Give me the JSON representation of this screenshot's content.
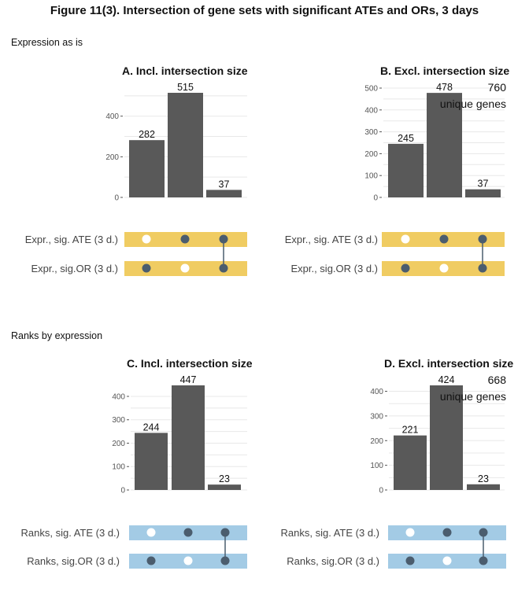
{
  "figure_title": "Figure 11(3). Intersection of gene sets with significant ATEs and ORs, 3 days",
  "sections": [
    {
      "label": "Expression as is"
    },
    {
      "label": "Ranks by expression"
    }
  ],
  "colors": {
    "bar": "#595959",
    "expr_band": "#f0cc62",
    "ranks_band": "#a3cbe5",
    "dot_filled": "#4b5d6e",
    "dot_empty": "#ffffff",
    "grid": "#e8e8e8"
  },
  "chart_data": [
    {
      "panel": "A",
      "type": "bar",
      "title": "A. Incl. intersection size",
      "categories": [
        "1",
        "2",
        "3"
      ],
      "values": [
        282,
        515,
        37
      ],
      "ylim": [
        0,
        515
      ],
      "yticks": [
        0,
        200,
        400
      ],
      "sets": [
        "Expr., sig. ATE (3 d.)",
        "Expr., sig.OR (3 d.)"
      ],
      "membership": [
        [
          false,
          true,
          true
        ],
        [
          true,
          false,
          true
        ]
      ],
      "annotation": null
    },
    {
      "panel": "B",
      "type": "bar",
      "title": "B. Excl. intersection size",
      "categories": [
        "1",
        "2",
        "3"
      ],
      "values": [
        245,
        478,
        37
      ],
      "ylim": [
        0,
        500
      ],
      "yticks": [
        0,
        100,
        200,
        300,
        400,
        500
      ],
      "sets": [
        "Expr., sig. ATE (3 d.)",
        "Expr., sig.OR (3 d.)"
      ],
      "membership": [
        [
          false,
          true,
          true
        ],
        [
          true,
          false,
          true
        ]
      ],
      "annotation": {
        "value": "760",
        "text": "unique genes"
      }
    },
    {
      "panel": "C",
      "type": "bar",
      "title": "C. Incl. intersection size",
      "categories": [
        "1",
        "2",
        "3"
      ],
      "values": [
        244,
        447,
        23
      ],
      "ylim": [
        0,
        447
      ],
      "yticks": [
        0,
        100,
        200,
        300,
        400
      ],
      "sets": [
        "Ranks, sig. ATE (3 d.)",
        "Ranks, sig.OR (3 d.)"
      ],
      "membership": [
        [
          false,
          true,
          true
        ],
        [
          true,
          false,
          true
        ]
      ],
      "annotation": null
    },
    {
      "panel": "D",
      "type": "bar",
      "title": "D. Excl. intersection size",
      "categories": [
        "1",
        "2",
        "3"
      ],
      "values": [
        221,
        424,
        23
      ],
      "ylim": [
        0,
        424
      ],
      "yticks": [
        0,
        100,
        200,
        300,
        400
      ],
      "sets": [
        "Ranks, sig. ATE (3 d.)",
        "Ranks, sig.OR (3 d.)"
      ],
      "membership": [
        [
          false,
          true,
          true
        ],
        [
          true,
          false,
          true
        ]
      ],
      "annotation": {
        "value": "668",
        "text": "unique genes"
      }
    }
  ]
}
